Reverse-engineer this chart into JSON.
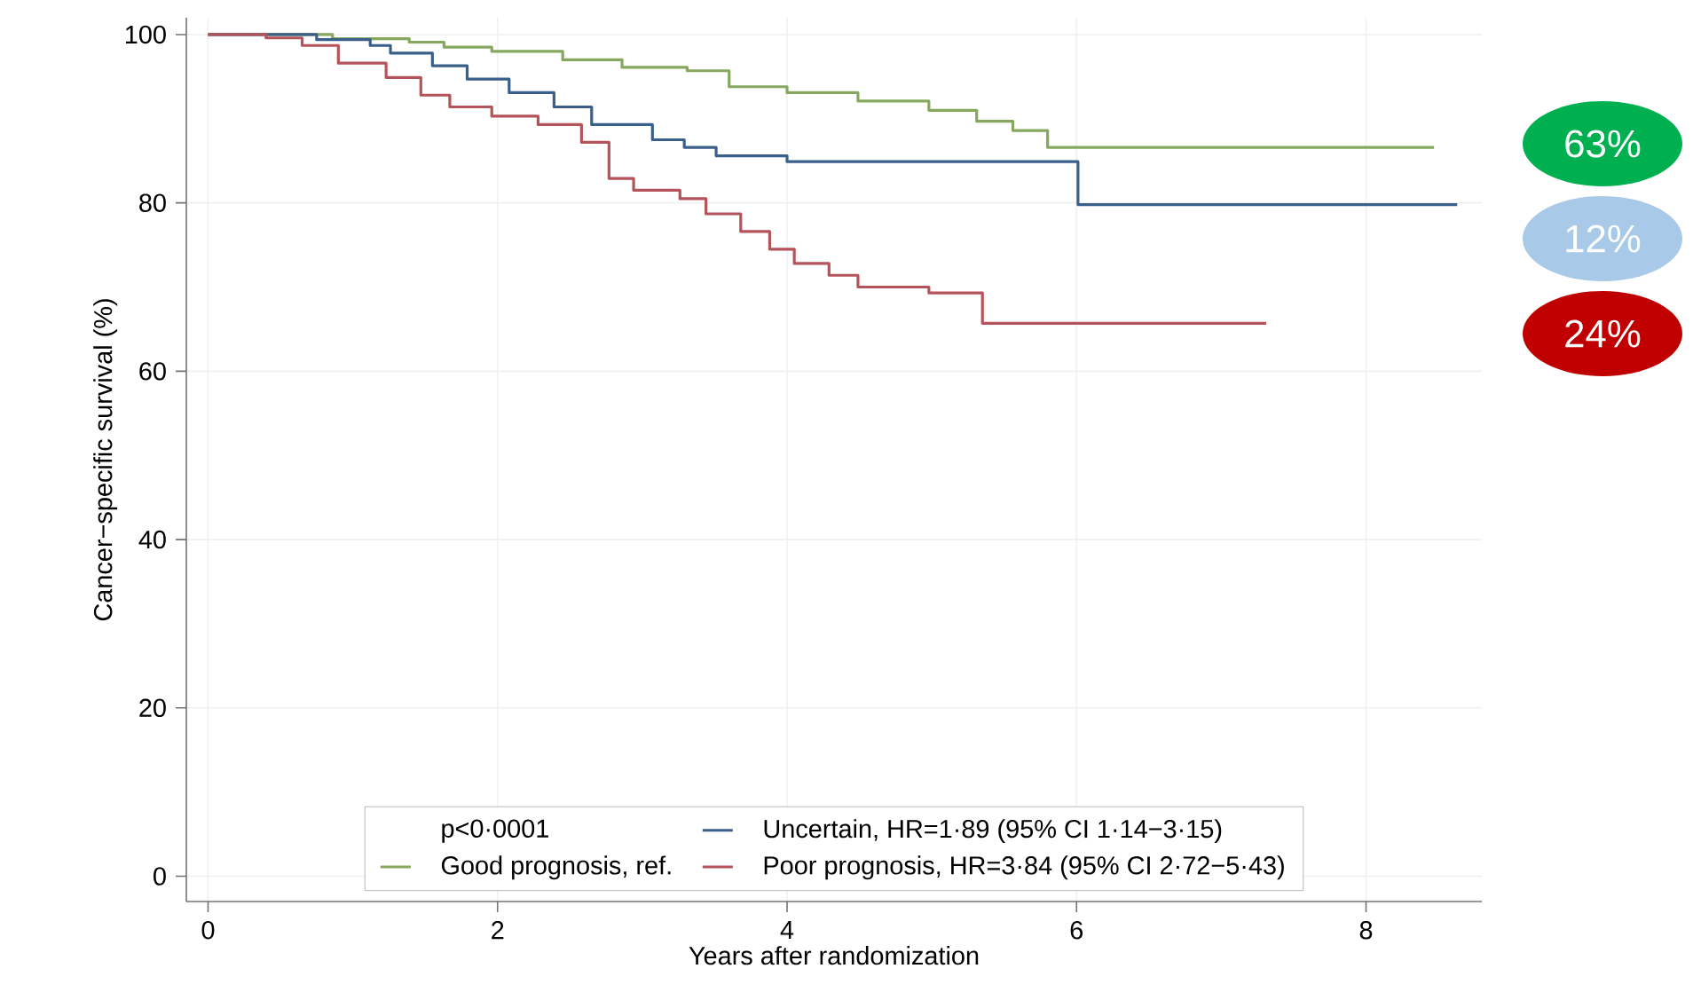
{
  "chart_data": {
    "type": "step",
    "xlabel": "Years after randomization",
    "ylabel": "Cancer−specific survival (%)",
    "xlim": [
      -0.15,
      8.8
    ],
    "ylim": [
      -3,
      102
    ],
    "xticks": [
      0,
      2,
      4,
      6,
      8
    ],
    "yticks": [
      0,
      20,
      40,
      60,
      80,
      100
    ],
    "grid": true,
    "legend": "bottom",
    "legend_title": "p<0·0001",
    "marker": "none",
    "series": [
      {
        "name": "Good prognosis, ref.",
        "color": "#86a75e",
        "x": [
          0,
          0.86,
          1.39,
          1.63,
          1.96,
          2.45,
          2.86,
          3.31,
          3.6,
          4.0,
          4.49,
          4.98,
          5.31,
          5.56,
          5.8,
          8.47
        ],
        "values": [
          100,
          99.5,
          99.1,
          98.5,
          98.0,
          97.0,
          96.1,
          95.7,
          93.8,
          93.1,
          92.1,
          91.0,
          89.7,
          88.6,
          86.6,
          86.6
        ]
      },
      {
        "name": "Uncertain, HR=1·89 (95% CI 1·14−3·15)",
        "color": "#3a5f8a",
        "x": [
          0,
          0.75,
          1.12,
          1.26,
          1.55,
          1.79,
          2.08,
          2.39,
          2.65,
          3.07,
          3.29,
          3.51,
          4.0,
          6.01,
          8.63
        ],
        "values": [
          100,
          99.4,
          98.7,
          97.8,
          96.3,
          94.7,
          93.1,
          91.4,
          89.3,
          87.5,
          86.6,
          85.6,
          84.9,
          79.8,
          79.8
        ]
      },
      {
        "name": "Poor prognosis, HR=3·84 (95% CI 2·72−5·43)",
        "color": "#b5535a",
        "x": [
          0,
          0.4,
          0.65,
          0.9,
          1.23,
          1.47,
          1.67,
          1.96,
          2.28,
          2.58,
          2.77,
          2.94,
          3.26,
          3.44,
          3.68,
          3.88,
          4.05,
          4.29,
          4.49,
          4.98,
          5.35,
          7.31
        ],
        "values": [
          100,
          99.6,
          98.7,
          96.6,
          94.9,
          92.8,
          91.4,
          90.3,
          89.3,
          87.2,
          82.9,
          81.5,
          80.5,
          78.7,
          76.6,
          74.5,
          72.8,
          71.4,
          70.0,
          69.3,
          65.7,
          65.7
        ]
      }
    ],
    "annotations": [
      "63%",
      "12%",
      "24%"
    ]
  }
}
